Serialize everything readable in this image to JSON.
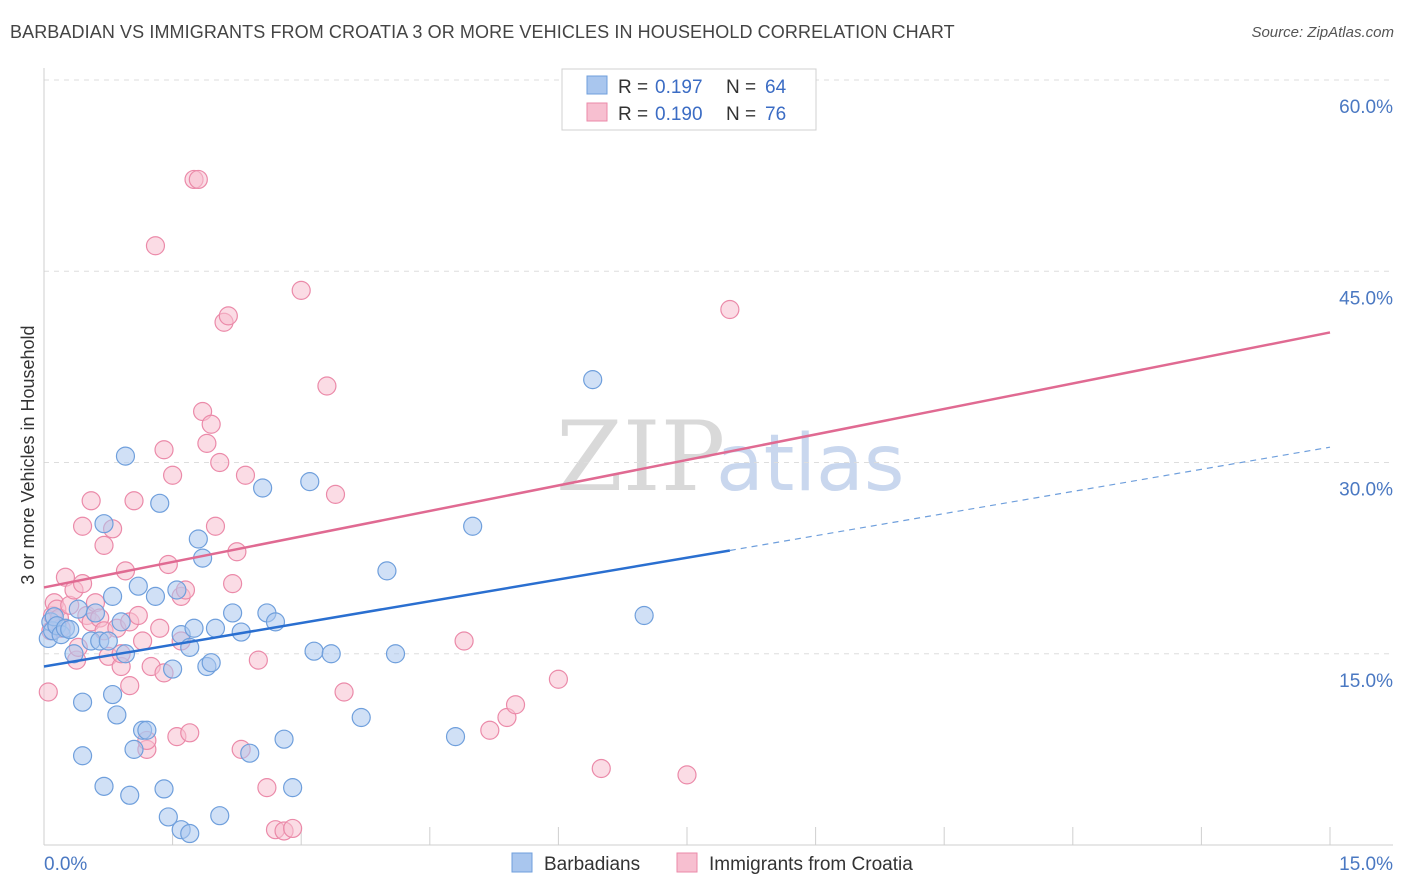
{
  "title": "BARBADIAN VS IMMIGRANTS FROM CROATIA 3 OR MORE VEHICLES IN HOUSEHOLD CORRELATION CHART",
  "source": "Source: ZipAtlas.com",
  "watermark": {
    "zip": "ZIP",
    "atlas": "atlas"
  },
  "colors": {
    "blue_fill": "#a9c6ee",
    "blue_stroke": "#6f9fdc",
    "blue_line": "#2a6fd0",
    "pink_fill": "#f7bfd0",
    "pink_stroke": "#eb8aa9",
    "pink_line": "#e06a92",
    "grid": "#dddddd",
    "axis_text": "#4a78c2"
  },
  "legend": {
    "rows": [
      {
        "r_label": "R =",
        "r_value": "0.197",
        "n_label": "N =",
        "n_value": "64"
      },
      {
        "r_label": "R =",
        "r_value": "0.190",
        "n_label": "N =",
        "n_value": "76"
      }
    ]
  },
  "bottom_legend": [
    "Barbadians",
    "Immigrants from Croatia"
  ],
  "chart_data": {
    "type": "scatter",
    "title": "BARBADIAN VS IMMIGRANTS FROM CROATIA 3 OR MORE VEHICLES IN HOUSEHOLD CORRELATION CHART",
    "xlabel": "",
    "ylabel": "3 or more Vehicles in Household",
    "xlim": [
      0,
      15
    ],
    "ylim": [
      0,
      60
    ],
    "x_tick_labels": [
      "0.0%",
      "15.0%"
    ],
    "y_ticks": [
      15,
      30,
      45,
      60
    ],
    "y_tick_labels": [
      "15.0%",
      "30.0%",
      "45.0%",
      "60.0%"
    ],
    "grid": true,
    "series": [
      {
        "name": "Barbadians",
        "R": 0.197,
        "N": 64,
        "trend": {
          "x0": 0,
          "y0": 14.0,
          "x1": 8.0,
          "y1": 23.1,
          "dashed_to_x": 15,
          "dashed_to_y": 31.2
        },
        "points": [
          [
            0.05,
            16.2
          ],
          [
            0.08,
            17.5
          ],
          [
            0.1,
            16.8
          ],
          [
            0.12,
            17.9
          ],
          [
            0.15,
            17.2
          ],
          [
            0.2,
            16.5
          ],
          [
            0.25,
            17.0
          ],
          [
            0.3,
            16.9
          ],
          [
            0.35,
            15.0
          ],
          [
            0.4,
            18.5
          ],
          [
            0.45,
            11.2
          ],
          [
            0.45,
            7.0
          ],
          [
            0.55,
            16.0
          ],
          [
            0.6,
            18.2
          ],
          [
            0.65,
            16.0
          ],
          [
            0.7,
            4.6
          ],
          [
            0.7,
            25.2
          ],
          [
            0.75,
            16.0
          ],
          [
            0.8,
            19.5
          ],
          [
            0.8,
            11.8
          ],
          [
            0.85,
            10.2
          ],
          [
            0.9,
            17.5
          ],
          [
            0.95,
            30.5
          ],
          [
            0.95,
            15.0
          ],
          [
            1.0,
            3.9
          ],
          [
            1.05,
            7.5
          ],
          [
            1.1,
            20.3
          ],
          [
            1.15,
            9.0
          ],
          [
            1.2,
            9.0
          ],
          [
            1.3,
            19.5
          ],
          [
            1.35,
            26.8
          ],
          [
            1.4,
            4.4
          ],
          [
            1.45,
            2.2
          ],
          [
            1.5,
            13.8
          ],
          [
            1.55,
            20.0
          ],
          [
            1.6,
            16.5
          ],
          [
            1.6,
            1.2
          ],
          [
            1.7,
            0.9
          ],
          [
            1.7,
            15.5
          ],
          [
            1.75,
            17.0
          ],
          [
            1.8,
            24.0
          ],
          [
            1.85,
            22.5
          ],
          [
            1.9,
            14.0
          ],
          [
            1.95,
            14.3
          ],
          [
            2.0,
            17.0
          ],
          [
            2.05,
            2.3
          ],
          [
            2.2,
            18.2
          ],
          [
            2.3,
            16.7
          ],
          [
            2.4,
            7.2
          ],
          [
            2.55,
            28.0
          ],
          [
            2.6,
            18.2
          ],
          [
            2.7,
            17.5
          ],
          [
            2.8,
            8.3
          ],
          [
            2.9,
            4.5
          ],
          [
            3.1,
            28.5
          ],
          [
            3.15,
            15.2
          ],
          [
            3.35,
            15.0
          ],
          [
            3.7,
            10.0
          ],
          [
            4.0,
            21.5
          ],
          [
            4.1,
            15.0
          ],
          [
            4.8,
            8.5
          ],
          [
            5.0,
            25.0
          ],
          [
            6.4,
            36.5
          ],
          [
            7.0,
            18.0
          ]
        ]
      },
      {
        "name": "Immigrants from Croatia",
        "R": 0.19,
        "N": 76,
        "trend": {
          "x0": 0,
          "y0": 20.2,
          "x1": 15,
          "y1": 40.2
        },
        "points": [
          [
            0.05,
            12.0
          ],
          [
            0.08,
            16.8
          ],
          [
            0.1,
            18.0
          ],
          [
            0.12,
            19.0
          ],
          [
            0.15,
            18.5
          ],
          [
            0.18,
            17.8
          ],
          [
            0.2,
            17.0
          ],
          [
            0.25,
            21.0
          ],
          [
            0.3,
            18.8
          ],
          [
            0.35,
            20.0
          ],
          [
            0.38,
            14.5
          ],
          [
            0.4,
            15.5
          ],
          [
            0.45,
            20.5
          ],
          [
            0.45,
            25.0
          ],
          [
            0.5,
            18.0
          ],
          [
            0.55,
            27.0
          ],
          [
            0.55,
            17.5
          ],
          [
            0.6,
            19.0
          ],
          [
            0.65,
            17.8
          ],
          [
            0.7,
            16.8
          ],
          [
            0.7,
            23.5
          ],
          [
            0.75,
            14.8
          ],
          [
            0.8,
            24.8
          ],
          [
            0.85,
            17.0
          ],
          [
            0.9,
            14.0
          ],
          [
            0.95,
            21.5
          ],
          [
            1.0,
            17.5
          ],
          [
            1.0,
            12.5
          ],
          [
            1.05,
            27.0
          ],
          [
            1.1,
            18.0
          ],
          [
            1.15,
            16.0
          ],
          [
            1.2,
            7.5
          ],
          [
            1.25,
            14.0
          ],
          [
            1.3,
            47.0
          ],
          [
            1.35,
            17.0
          ],
          [
            1.4,
            31.0
          ],
          [
            1.45,
            22.0
          ],
          [
            1.5,
            29.0
          ],
          [
            1.55,
            8.5
          ],
          [
            1.6,
            19.5
          ],
          [
            1.65,
            20.0
          ],
          [
            1.7,
            8.8
          ],
          [
            1.75,
            52.2
          ],
          [
            1.8,
            52.2
          ],
          [
            1.85,
            34.0
          ],
          [
            1.9,
            31.5
          ],
          [
            1.95,
            33.0
          ],
          [
            2.0,
            25.0
          ],
          [
            2.05,
            30.0
          ],
          [
            2.1,
            41.0
          ],
          [
            2.15,
            41.5
          ],
          [
            2.2,
            20.5
          ],
          [
            2.25,
            23.0
          ],
          [
            2.3,
            7.5
          ],
          [
            2.35,
            29.0
          ],
          [
            2.5,
            14.5
          ],
          [
            2.6,
            4.5
          ],
          [
            2.7,
            1.2
          ],
          [
            2.8,
            1.1
          ],
          [
            2.9,
            1.3
          ],
          [
            3.0,
            43.5
          ],
          [
            3.3,
            36.0
          ],
          [
            3.4,
            27.5
          ],
          [
            3.5,
            12.0
          ],
          [
            4.9,
            16.0
          ],
          [
            5.2,
            9.0
          ],
          [
            5.4,
            10.0
          ],
          [
            5.5,
            11.0
          ],
          [
            6.0,
            13.0
          ],
          [
            6.5,
            6.0
          ],
          [
            7.5,
            5.5
          ],
          [
            8.0,
            42.0
          ],
          [
            1.2,
            8.2
          ],
          [
            0.9,
            15.0
          ],
          [
            1.4,
            13.5
          ],
          [
            1.6,
            16.0
          ]
        ]
      }
    ]
  }
}
